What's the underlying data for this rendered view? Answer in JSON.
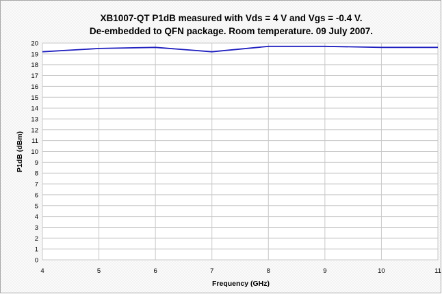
{
  "chart_data": {
    "type": "line",
    "title": "XB1007-QT P1dB measured with Vds = 4 V and Vgs = -0.4 V.",
    "subtitle": "De-embedded to QFN package. Room temperature. 09 July 2007.",
    "xlabel": "Frequency (GHz)",
    "ylabel": "P1dB (dBm)",
    "xlim": [
      4,
      11
    ],
    "ylim": [
      0,
      20
    ],
    "x_ticks": [
      4,
      5,
      6,
      7,
      8,
      9,
      10,
      11
    ],
    "y_ticks": [
      0,
      1,
      2,
      3,
      4,
      5,
      6,
      7,
      8,
      9,
      10,
      11,
      12,
      13,
      14,
      15,
      16,
      17,
      18,
      19,
      20
    ],
    "grid": true,
    "series": [
      {
        "color": "#1f1fbf",
        "x": [
          4,
          5,
          6,
          7,
          8,
          9,
          10,
          11
        ],
        "y": [
          19.2,
          19.5,
          19.6,
          19.2,
          19.7,
          19.7,
          19.6,
          19.6
        ]
      }
    ]
  }
}
